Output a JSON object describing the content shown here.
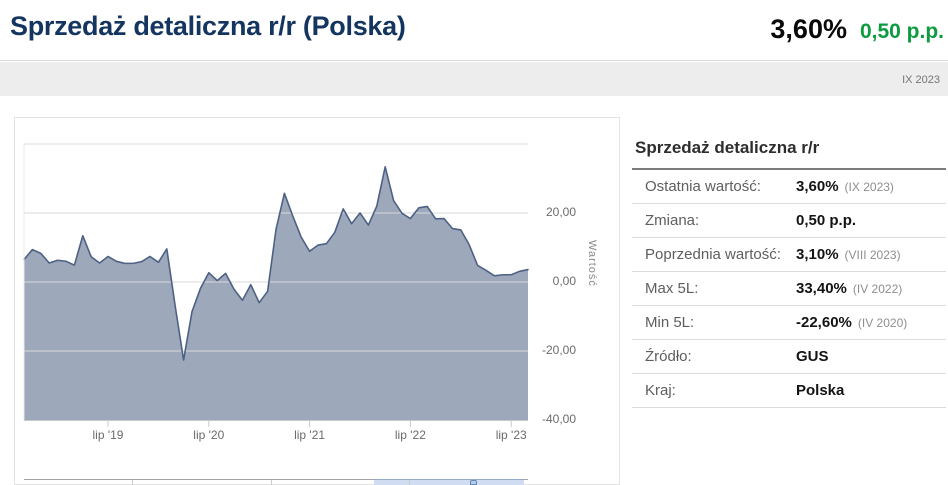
{
  "header": {
    "title": "Sprzedaż detaliczna r/r (Polska)",
    "current_value": "3,60%",
    "change_value": "0,50 p.p.",
    "period": "IX 2023"
  },
  "colors": {
    "navy_title": "#14355f",
    "value_black": "#0a0a0a",
    "green_change": "#0c9b3f",
    "area_line": "#4d6184",
    "area_fill": "rgba(77,97,132,0.55)",
    "gridline": "#d9d9d9",
    "axis_line": "#c9c9c9",
    "band_bg": "#ededed",
    "navigator_blue": "#cfdcf2"
  },
  "chart_data": {
    "type": "area",
    "title": "",
    "y_axis_title": "Wartość",
    "x_range": "IX 2018 – IX 2023",
    "interval": "monthly",
    "ylim": [
      -40,
      40
    ],
    "grid": "on",
    "gridline_values": [
      40,
      20,
      0,
      -20
    ],
    "y_ticks": [
      {
        "value": 20,
        "label": "20,00"
      },
      {
        "value": 0,
        "label": "0,00"
      },
      {
        "value": -20,
        "label": "-20,00"
      },
      {
        "value": -40,
        "label": "-40,00"
      }
    ],
    "x_ticks": [
      {
        "index": 10,
        "label": "lip '19"
      },
      {
        "index": 22,
        "label": "lip '20"
      },
      {
        "index": 34,
        "label": "lip '21"
      },
      {
        "index": 46,
        "label": "lip '22"
      },
      {
        "index": 58,
        "label": "lip '23"
      }
    ],
    "series": [
      {
        "name": "Sprzedaż detaliczna r/r",
        "values": [
          6.5,
          9.4,
          8.3,
          5.5,
          6.3,
          6.0,
          4.9,
          13.4,
          7.3,
          5.5,
          7.4,
          6.0,
          5.4,
          5.4,
          5.9,
          7.4,
          5.7,
          9.6,
          -7.0,
          -22.6,
          -8.6,
          -1.9,
          2.7,
          0.4,
          2.5,
          -2.1,
          -5.3,
          -0.8,
          -6.0,
          -2.7,
          15.2,
          25.7,
          19.1,
          13.0,
          8.9,
          10.7,
          11.1,
          14.4,
          21.2,
          16.9,
          20.0,
          16.5,
          22.0,
          33.4,
          23.6,
          19.9,
          18.4,
          21.5,
          21.9,
          18.3,
          18.4,
          15.5,
          15.1,
          10.8,
          4.8,
          3.4,
          1.8,
          2.1,
          2.1,
          3.1,
          3.6
        ]
      }
    ],
    "navigator": {
      "divider_positions": [
        117,
        256,
        394
      ],
      "selection": [
        359,
        509
      ],
      "handle_position": 455
    }
  },
  "panel": {
    "heading": "Sprzedaż detaliczna r/r",
    "rows": [
      {
        "label": "Ostatnia wartość:",
        "value": "3,60%",
        "note": "(IX 2023)"
      },
      {
        "label": "Zmiana:",
        "value": "0,50 p.p.",
        "note": ""
      },
      {
        "label": "Poprzednia wartość:",
        "value": "3,10%",
        "note": "(VIII 2023)"
      },
      {
        "label": "Max 5L:",
        "value": "33,40%",
        "note": "(IV 2022)"
      },
      {
        "label": "Min 5L:",
        "value": "-22,60%",
        "note": "(IV 2020)"
      },
      {
        "label": "Źródło:",
        "value": "GUS",
        "note": ""
      },
      {
        "label": "Kraj:",
        "value": "Polska",
        "note": ""
      }
    ]
  }
}
